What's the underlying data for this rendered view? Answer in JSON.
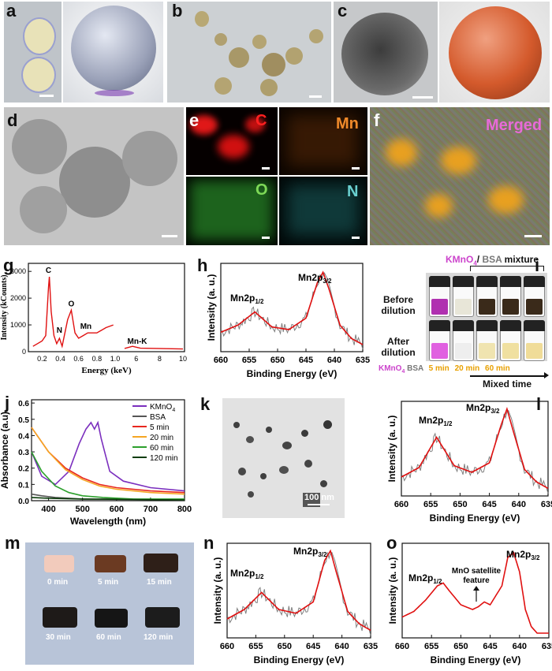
{
  "panel_labels": {
    "a": "a",
    "b": "b",
    "c": "c",
    "d": "d",
    "e": "e",
    "f": "f",
    "g": "g",
    "h": "h",
    "i": "i",
    "j": "j",
    "k": "k",
    "l": "l",
    "m": "m",
    "n": "n",
    "o": "o"
  },
  "eds_map_labels": {
    "c": "C",
    "mn": "Mn",
    "o": "O",
    "n": "N",
    "merged": "Merged"
  },
  "k_scale": "100 nm",
  "colors": {
    "fit": "#e01010",
    "raw": "#808080",
    "kmno4": "#cc44cc",
    "bsa_text": "#777777",
    "mixed": "#e8a000"
  },
  "panel_i": {
    "header_prefix": "KMnO",
    "header_sub": "4",
    "header_slash": "/ ",
    "header_bsa": "BSA",
    "header_suffix": " mixture",
    "row1": "Before",
    "row1b": "dilution",
    "row2": "After",
    "row2b": "dilution",
    "cap_kmno4": "KMnO",
    "cap_kmno4_sub": "4",
    "cap_bsa": "BSA",
    "cap_t1": "5 min",
    "cap_t2": "20 min",
    "cap_t3": "60 min",
    "xlabel": "Mixed time"
  },
  "panel_m": {
    "t0": "0 min",
    "t1": "5 min",
    "t2": "15 min",
    "t3": "30 min",
    "t4": "60 min",
    "t5": "120 min"
  },
  "chart_data": [
    {
      "id": "g",
      "type": "line",
      "xlabel": "Energy (keV)",
      "ylabel": "Intensity (kCounts)",
      "ticks_x_left": [
        "0.2",
        "0.4",
        "0.6",
        "0.8",
        "1.0"
      ],
      "ticks_x_right": [
        "6",
        "8",
        "10"
      ],
      "ticks_y": [
        "0",
        "1000",
        "2000",
        "3000"
      ],
      "ylim": [
        0,
        3300
      ],
      "annotations": [
        "C",
        "N",
        "O",
        "Mn",
        "Mn-K"
      ],
      "series": [
        {
          "x": [
            0.1,
            0.15,
            0.2,
            0.24,
            0.27,
            0.28,
            0.3,
            0.33,
            0.36,
            0.39,
            0.42,
            0.45,
            0.48,
            0.52,
            0.56,
            0.6,
            0.65,
            0.7,
            0.8,
            0.9,
            0.98
          ],
          "values": [
            200,
            300,
            400,
            600,
            2400,
            2800,
            1500,
            600,
            300,
            500,
            200,
            700,
            1200,
            1550,
            700,
            500,
            600,
            700,
            700,
            900,
            1000
          ]
        }
      ]
    },
    {
      "id": "h",
      "type": "line",
      "xlabel": "Binding Energy (eV)",
      "ylabel": "Intensity (a. u.)",
      "ticks_x": [
        "660",
        "655",
        "650",
        "645",
        "640",
        "635"
      ],
      "xlim": [
        660,
        635
      ],
      "annotations": [
        "Mn2p",
        "1/2",
        "3/2"
      ],
      "series": [
        {
          "name": "fit",
          "x": [
            660,
            657,
            654,
            651,
            648,
            645,
            643,
            642,
            641,
            639,
            637,
            635
          ],
          "values": [
            0.22,
            0.3,
            0.45,
            0.28,
            0.25,
            0.38,
            0.78,
            0.9,
            0.72,
            0.3,
            0.15,
            0.08
          ]
        }
      ]
    },
    {
      "id": "j",
      "type": "line",
      "xlabel": "Wavelength (nm)",
      "ylabel": "Absorbance (a.u)",
      "ticks_x": [
        "400",
        "500",
        "600",
        "700",
        "800"
      ],
      "ticks_y": [
        "0.0",
        "0.1",
        "0.2",
        "0.3",
        "0.4",
        "0.5",
        "0.6"
      ],
      "xlim": [
        350,
        800
      ],
      "ylim": [
        0,
        0.62
      ],
      "series": [
        {
          "name": "KMnO",
          "sub": "4",
          "color": "#7b2fbe",
          "x": [
            350,
            380,
            420,
            460,
            490,
            510,
            525,
            535,
            545,
            555,
            565,
            580,
            620,
            700,
            800
          ],
          "values": [
            0.3,
            0.15,
            0.1,
            0.18,
            0.35,
            0.44,
            0.48,
            0.44,
            0.48,
            0.38,
            0.3,
            0.18,
            0.12,
            0.08,
            0.06
          ]
        },
        {
          "name": "BSA",
          "color": "#555555",
          "x": [
            350,
            380,
            420,
            500,
            600,
            800
          ],
          "values": [
            0.04,
            0.03,
            0.02,
            0.01,
            0.01,
            0.005
          ]
        },
        {
          "name": "5 min",
          "color": "#e8271e",
          "x": [
            350,
            400,
            450,
            500,
            550,
            600,
            700,
            800
          ],
          "values": [
            0.45,
            0.3,
            0.2,
            0.14,
            0.1,
            0.08,
            0.06,
            0.05
          ]
        },
        {
          "name": "20 min",
          "color": "#f5a623",
          "x": [
            350,
            400,
            450,
            500,
            550,
            600,
            700,
            800
          ],
          "values": [
            0.45,
            0.3,
            0.19,
            0.13,
            0.09,
            0.07,
            0.05,
            0.04
          ]
        },
        {
          "name": "60 min",
          "color": "#2ca02c",
          "x": [
            350,
            380,
            420,
            460,
            500,
            560,
            650,
            800
          ],
          "values": [
            0.3,
            0.18,
            0.09,
            0.05,
            0.03,
            0.02,
            0.01,
            0.01
          ]
        },
        {
          "name": "120 min",
          "color": "#0b3d0b",
          "x": [
            350,
            400,
            500,
            600,
            800
          ],
          "values": [
            0.02,
            0.015,
            0.01,
            0.008,
            0.005
          ]
        }
      ]
    },
    {
      "id": "l",
      "type": "line",
      "xlabel": "Binding Energy (eV)",
      "ylabel": "Intensity (a. u.)",
      "ticks_x": [
        "660",
        "655",
        "650",
        "645",
        "640",
        "635"
      ],
      "xlim": [
        660,
        635
      ],
      "series": [
        {
          "name": "fit",
          "x": [
            660,
            657,
            654,
            651,
            648,
            645,
            643,
            642,
            641,
            639,
            637,
            635
          ],
          "values": [
            0.2,
            0.3,
            0.62,
            0.32,
            0.25,
            0.35,
            0.75,
            0.92,
            0.7,
            0.28,
            0.15,
            0.08
          ]
        }
      ]
    },
    {
      "id": "n",
      "type": "line",
      "xlabel": "Binding Energy (eV)",
      "ylabel": "Intensity (a. u.)",
      "ticks_x": [
        "660",
        "655",
        "650",
        "645",
        "640",
        "635"
      ],
      "xlim": [
        660,
        635
      ],
      "series": [
        {
          "name": "fit",
          "x": [
            660,
            657,
            654,
            651,
            648,
            645,
            643,
            642,
            641,
            639,
            637,
            635
          ],
          "values": [
            0.2,
            0.3,
            0.48,
            0.3,
            0.26,
            0.38,
            0.82,
            0.92,
            0.7,
            0.28,
            0.15,
            0.08
          ]
        }
      ]
    },
    {
      "id": "o",
      "type": "line",
      "xlabel": "Binding Energy (eV)",
      "ylabel": "Intensity (a. u.)",
      "ticks_x": [
        "660",
        "655",
        "650",
        "645",
        "640",
        "635"
      ],
      "xlim": [
        660,
        635
      ],
      "annotations": [
        "MnO satellite",
        "feature"
      ],
      "series": [
        {
          "name": "raw",
          "x": [
            660,
            658,
            656,
            654,
            653,
            652,
            650,
            648,
            647,
            646,
            645,
            643,
            642,
            641,
            640,
            639,
            638,
            637
          ],
          "values": [
            0.22,
            0.28,
            0.4,
            0.55,
            0.58,
            0.5,
            0.35,
            0.3,
            0.33,
            0.38,
            0.35,
            0.55,
            0.85,
            0.9,
            0.7,
            0.3,
            0.12,
            0.05
          ]
        }
      ]
    }
  ]
}
